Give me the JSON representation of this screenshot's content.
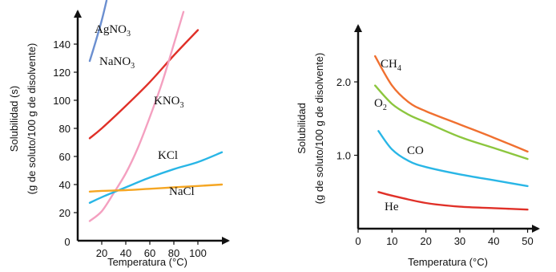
{
  "chart_data": [
    {
      "type": "line",
      "title": "",
      "xlabel": "Temperatura (°C)",
      "ylabel": "Solubilidad (s)",
      "ylabel_sub": "(g de soluto/100 g de disolvente)",
      "xlim": [
        0,
        120
      ],
      "ylim": [
        0,
        160
      ],
      "xticks": [
        20,
        40,
        60,
        80,
        100
      ],
      "yticks": [
        20,
        40,
        60,
        80,
        100,
        120,
        140
      ],
      "origin_label": "0",
      "series": [
        {
          "name": "AgNO3",
          "label_base": "AgNO",
          "label_sub": "3",
          "color": "#6b8fd0",
          "x": [
            10,
            15,
            20,
            24
          ],
          "y": [
            128,
            142,
            157,
            171
          ]
        },
        {
          "name": "NaNO3",
          "label_base": "NaNO",
          "label_sub": "3",
          "color": "#e03028",
          "x": [
            10,
            20,
            40,
            60,
            80,
            100
          ],
          "y": [
            73,
            80,
            96,
            113,
            132,
            150
          ]
        },
        {
          "name": "KNO3",
          "label_base": "KNO",
          "label_sub": "3",
          "color": "#f4a0c0",
          "x": [
            10,
            20,
            30,
            40,
            50,
            60,
            70,
            80,
            88
          ],
          "y": [
            14,
            21,
            34,
            48,
            66,
            88,
            112,
            140,
            163
          ]
        },
        {
          "name": "KCl",
          "label_base": "KCl",
          "label_sub": "",
          "color": "#29b6e6",
          "x": [
            10,
            20,
            40,
            60,
            80,
            100,
            120
          ],
          "y": [
            27,
            31,
            38,
            45,
            51,
            56,
            63
          ]
        },
        {
          "name": "NaCl",
          "label_base": "NaCl",
          "label_sub": "",
          "color": "#f5a623",
          "x": [
            10,
            20,
            40,
            60,
            80,
            100,
            120
          ],
          "y": [
            35,
            35.5,
            36,
            37,
            38,
            39,
            40
          ]
        }
      ]
    },
    {
      "type": "line",
      "title": "",
      "xlabel": "Temperatura (°C)",
      "ylabel": "Solubilidad",
      "ylabel_sub": "(g de soluto/100 g de disolvente)",
      "xlim": [
        0,
        52
      ],
      "ylim": [
        0,
        2.7
      ],
      "xticks": [
        0,
        10,
        20,
        30,
        40,
        50
      ],
      "yticks": [
        1.0,
        2.0
      ],
      "ytick_labels": [
        "1.0",
        "2.0"
      ],
      "series": [
        {
          "name": "CH4",
          "label_base": "CH",
          "label_sub": "4",
          "color": "#f07030",
          "x": [
            5,
            10,
            15,
            20,
            30,
            40,
            50
          ],
          "y": [
            2.35,
            1.95,
            1.72,
            1.6,
            1.42,
            1.24,
            1.05
          ]
        },
        {
          "name": "O2",
          "label_base": "O",
          "label_sub": "2",
          "color": "#8cc63e",
          "x": [
            5,
            10,
            15,
            20,
            30,
            40,
            50
          ],
          "y": [
            1.95,
            1.7,
            1.55,
            1.45,
            1.25,
            1.1,
            0.95
          ]
        },
        {
          "name": "CO",
          "label_base": "CO",
          "label_sub": "",
          "color": "#29b6e6",
          "x": [
            6,
            10,
            15,
            20,
            30,
            40,
            50
          ],
          "y": [
            1.33,
            1.08,
            0.92,
            0.84,
            0.74,
            0.66,
            0.58
          ]
        },
        {
          "name": "He",
          "label_base": "He",
          "label_sub": "",
          "color": "#e03028",
          "x": [
            6,
            10,
            20,
            30,
            40,
            50
          ],
          "y": [
            0.5,
            0.45,
            0.35,
            0.3,
            0.28,
            0.26
          ]
        }
      ]
    }
  ]
}
